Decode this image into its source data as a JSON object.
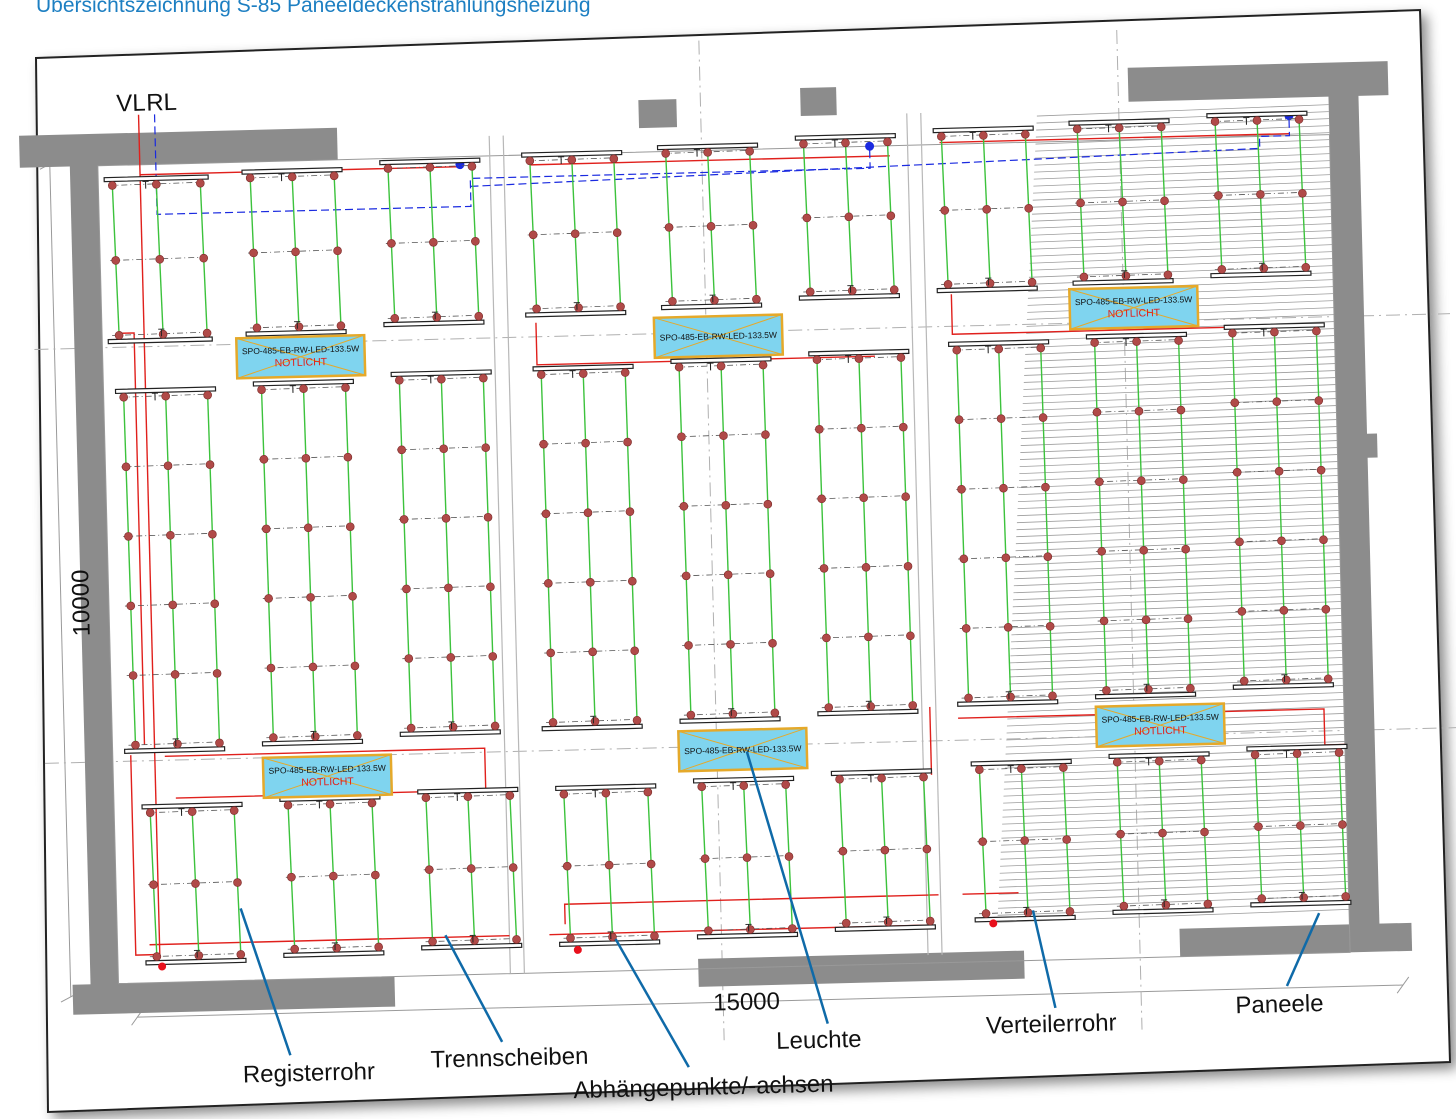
{
  "title": "Übersichtszeichnung S-85 Paneeldeckenstrahlungsheizung",
  "pipe_labels": {
    "vl": "VL",
    "rl": "RL"
  },
  "dimensions": {
    "width": "15000",
    "height": "10000"
  },
  "fixtures": [
    {
      "model": "SPO-485-EB-RW-LED-133.5W",
      "note": "NOTLICHT"
    },
    {
      "model": "SPO-485-EB-RW-LED-133.5W",
      "note": ""
    },
    {
      "model": "SPO-485-EB-RW-LED-133.5W",
      "note": "NOTLICHT"
    },
    {
      "model": "SPO-485-EB-RW-LED-133.5W",
      "note": "NOTLICHT"
    },
    {
      "model": "SPO-485-EB-RW-LED-133.5W",
      "note": ""
    },
    {
      "model": "SPO-485-EB-RW-LED-133.5W",
      "note": "NOTLICHT"
    }
  ],
  "legend": {
    "registerrohr": "Registerrohr",
    "trennscheiben": "Trennscheiben",
    "abhaengepunkte": "Abhängepunkte/-achsen",
    "leuchte": "Leuchte",
    "verteilerrohr": "Verteilerrohr",
    "paneele": "Paneele"
  },
  "marker_symbol": "T",
  "colors": {
    "title": "#1d7fc2",
    "wall": "#8c8c8c",
    "register_pipe": "#3cc23c",
    "distribution_pipe": "#e0201c",
    "hanger_point": "#b04a48",
    "fixture_fill": "#7fd4ef",
    "fixture_border": "#e5a92a",
    "return_pipe": "#1a2ae0",
    "leader": "#0f6aa8"
  }
}
